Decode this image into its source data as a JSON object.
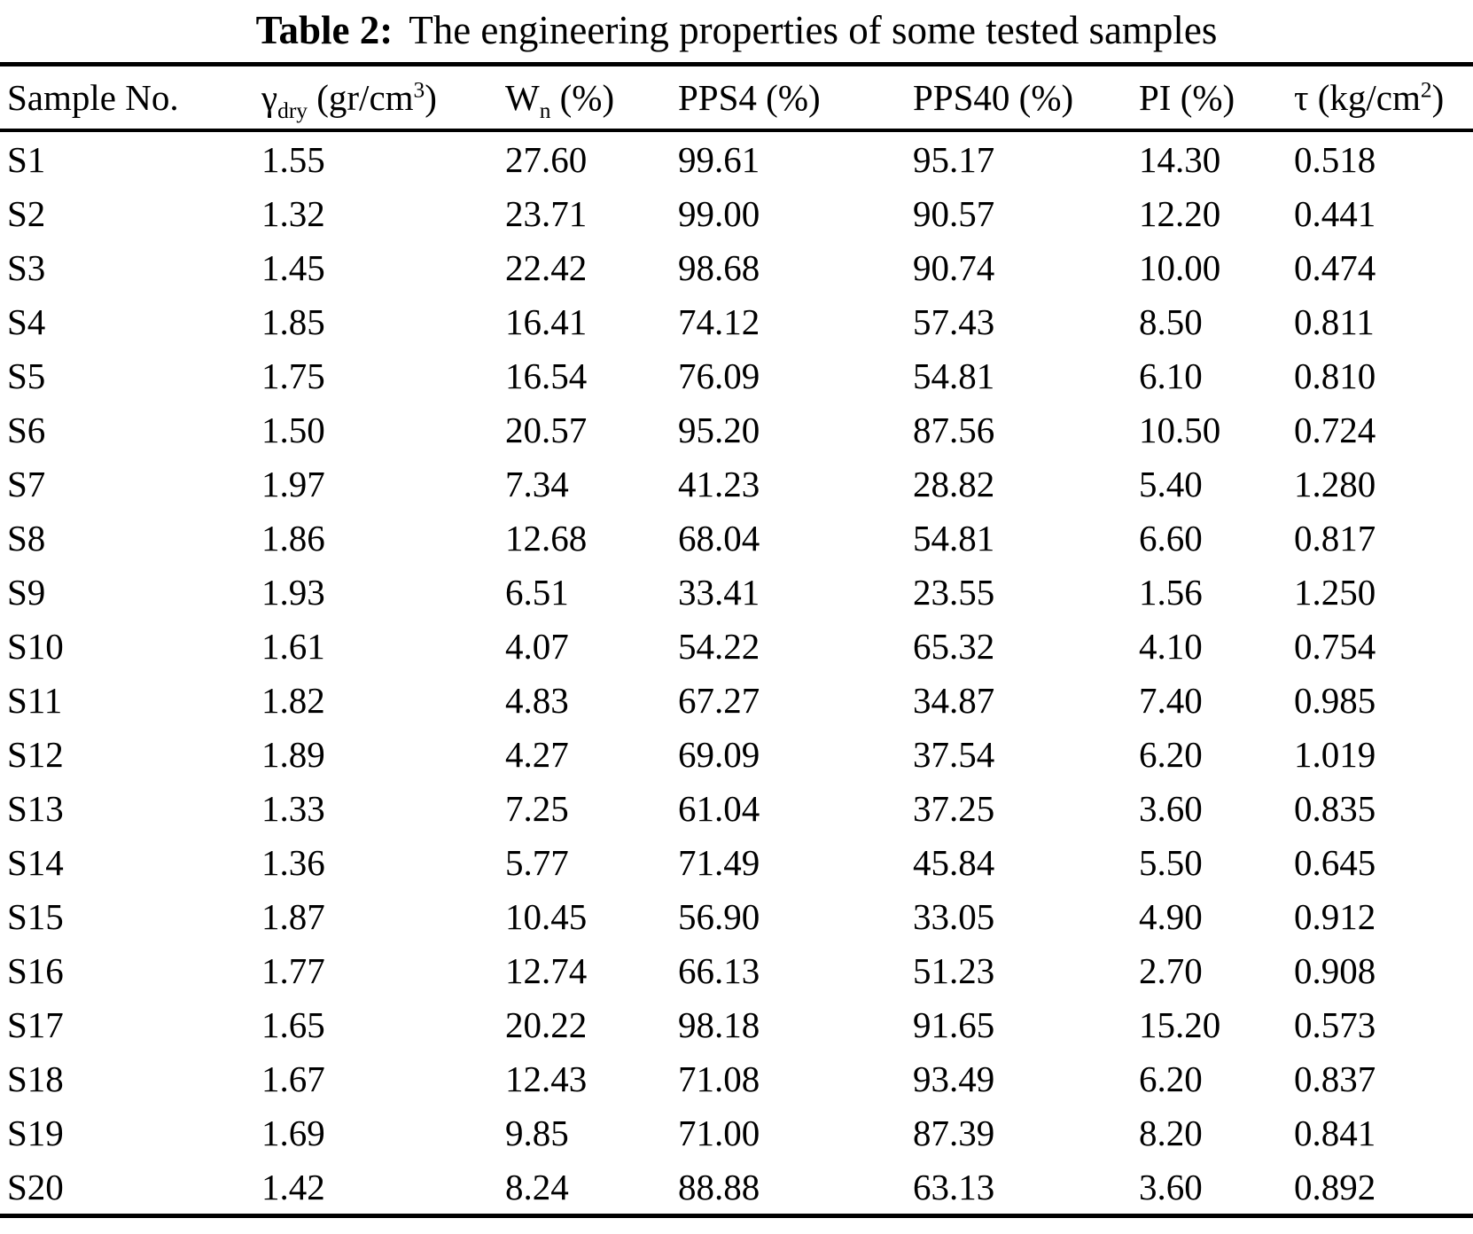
{
  "title": {
    "label": "Table 2:",
    "text": "The engineering properties of some tested samples"
  },
  "table": {
    "columns": [
      {
        "key": "sample-no",
        "label": "Sample No.",
        "sub": "",
        "mid": "",
        "sup": "",
        "end": ""
      },
      {
        "key": "gamma-dry",
        "label": "γ",
        "sub": "dry",
        "mid": " (gr/cm",
        "sup": "3",
        "end": ")"
      },
      {
        "key": "wn",
        "label": "W",
        "sub": "n",
        "mid": " (%)",
        "sup": "",
        "end": ""
      },
      {
        "key": "pps4",
        "label": "PPS4",
        "sub": "",
        "mid": " (%)",
        "sup": "",
        "end": ""
      },
      {
        "key": "pps40",
        "label": "PPS40",
        "sub": "",
        "mid": " (%)",
        "sup": "",
        "end": ""
      },
      {
        "key": "pi",
        "label": "PI",
        "sub": "",
        "mid": " (%)",
        "sup": "",
        "end": ""
      },
      {
        "key": "tau",
        "label": "τ",
        "sub": "",
        "mid": " (kg/cm",
        "sup": "2",
        "end": ")"
      }
    ],
    "rows": [
      [
        "S1",
        "1.55",
        "27.60",
        "99.61",
        "95.17",
        "14.30",
        "0.518"
      ],
      [
        "S2",
        "1.32",
        "23.71",
        "99.00",
        "90.57",
        "12.20",
        "0.441"
      ],
      [
        "S3",
        "1.45",
        "22.42",
        "98.68",
        "90.74",
        "10.00",
        "0.474"
      ],
      [
        "S4",
        "1.85",
        "16.41",
        "74.12",
        "57.43",
        "8.50",
        "0.811"
      ],
      [
        "S5",
        "1.75",
        "16.54",
        "76.09",
        "54.81",
        "6.10",
        "0.810"
      ],
      [
        "S6",
        "1.50",
        "20.57",
        "95.20",
        "87.56",
        "10.50",
        "0.724"
      ],
      [
        "S7",
        "1.97",
        "7.34",
        "41.23",
        "28.82",
        "5.40",
        "1.280"
      ],
      [
        "S8",
        "1.86",
        "12.68",
        "68.04",
        "54.81",
        "6.60",
        "0.817"
      ],
      [
        "S9",
        "1.93",
        "6.51",
        "33.41",
        "23.55",
        "1.56",
        "1.250"
      ],
      [
        "S10",
        "1.61",
        "4.07",
        "54.22",
        "65.32",
        "4.10",
        "0.754"
      ],
      [
        "S11",
        "1.82",
        "4.83",
        "67.27",
        "34.87",
        "7.40",
        "0.985"
      ],
      [
        "S12",
        "1.89",
        "4.27",
        "69.09",
        "37.54",
        "6.20",
        "1.019"
      ],
      [
        "S13",
        "1.33",
        "7.25",
        "61.04",
        "37.25",
        "3.60",
        "0.835"
      ],
      [
        "S14",
        "1.36",
        "5.77",
        "71.49",
        "45.84",
        "5.50",
        "0.645"
      ],
      [
        "S15",
        "1.87",
        "10.45",
        "56.90",
        "33.05",
        "4.90",
        "0.912"
      ],
      [
        "S16",
        "1.77",
        "12.74",
        "66.13",
        "51.23",
        "2.70",
        "0.908"
      ],
      [
        "S17",
        "1.65",
        "20.22",
        "98.18",
        "91.65",
        "15.20",
        "0.573"
      ],
      [
        "S18",
        "1.67",
        "12.43",
        "71.08",
        "93.49",
        "6.20",
        "0.837"
      ],
      [
        "S19",
        "1.69",
        "9.85",
        "71.00",
        "87.39",
        "8.20",
        "0.841"
      ],
      [
        "S20",
        "1.42",
        "8.24",
        "88.88",
        "63.13",
        "3.60",
        "0.892"
      ]
    ]
  }
}
